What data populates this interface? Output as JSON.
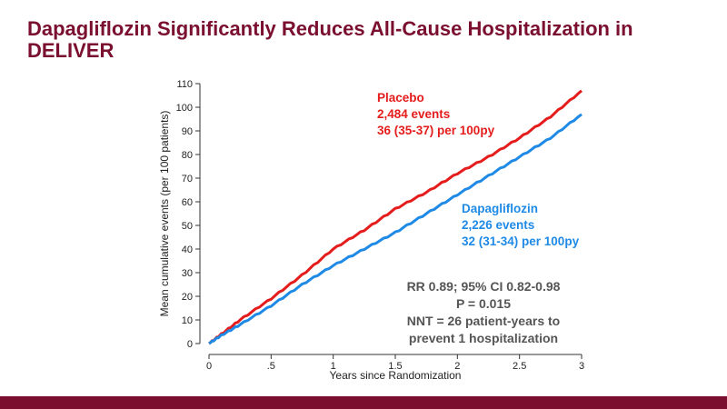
{
  "slide": {
    "title": "Dapagliflozin Significantly Reduces All-Cause Hospitalization in DELIVER"
  },
  "colors": {
    "brand": "#7a0f2f",
    "placebo": "#e41c1c",
    "dapagliflozin": "#1e8ae6",
    "stats_text": "#555555"
  },
  "chart_data": {
    "type": "line",
    "title": "",
    "xlabel": "Years since Randomization",
    "ylabel": "Mean cumulative events (per 100 patients)",
    "xlim": [
      0,
      3
    ],
    "ylim": [
      0,
      110
    ],
    "x_ticks": [
      0,
      0.5,
      1,
      1.5,
      2,
      2.5,
      3
    ],
    "x_tick_labels": [
      "0",
      ".5",
      "1",
      "1.5",
      "2",
      "2.5",
      "3"
    ],
    "y_ticks": [
      0,
      10,
      20,
      30,
      40,
      50,
      60,
      70,
      80,
      90,
      100,
      110
    ],
    "grid": false,
    "series": [
      {
        "name": "Placebo",
        "color": "#e41c1c",
        "x": [
          0,
          0.1,
          0.25,
          0.5,
          0.75,
          1,
          1.25,
          1.5,
          1.75,
          2,
          2.25,
          2.5,
          2.75,
          3
        ],
        "y": [
          0,
          4,
          10,
          19,
          29,
          40,
          48,
          57,
          64,
          72,
          79,
          87,
          96,
          107
        ],
        "label_lines": [
          "Placebo",
          "2,484 events",
          "36 (35-37) per 100py"
        ]
      },
      {
        "name": "Dapagliflozin",
        "color": "#1e8ae6",
        "x": [
          0,
          0.1,
          0.25,
          0.5,
          0.75,
          1,
          1.25,
          1.5,
          1.75,
          2,
          2.25,
          2.5,
          2.75,
          3
        ],
        "y": [
          0,
          3.5,
          8,
          16,
          25,
          33,
          40,
          47,
          55,
          63,
          71,
          79,
          87,
          97
        ],
        "label_lines": [
          "Dapagliflozin",
          "2,226 events",
          "32 (31-34) per 100py"
        ]
      }
    ],
    "annotation": {
      "lines": [
        "RR 0.89; 95% CI 0.82-0.98",
        "P = 0.015",
        "NNT = 26 patient-years to",
        "prevent 1 hospitalization"
      ]
    }
  }
}
